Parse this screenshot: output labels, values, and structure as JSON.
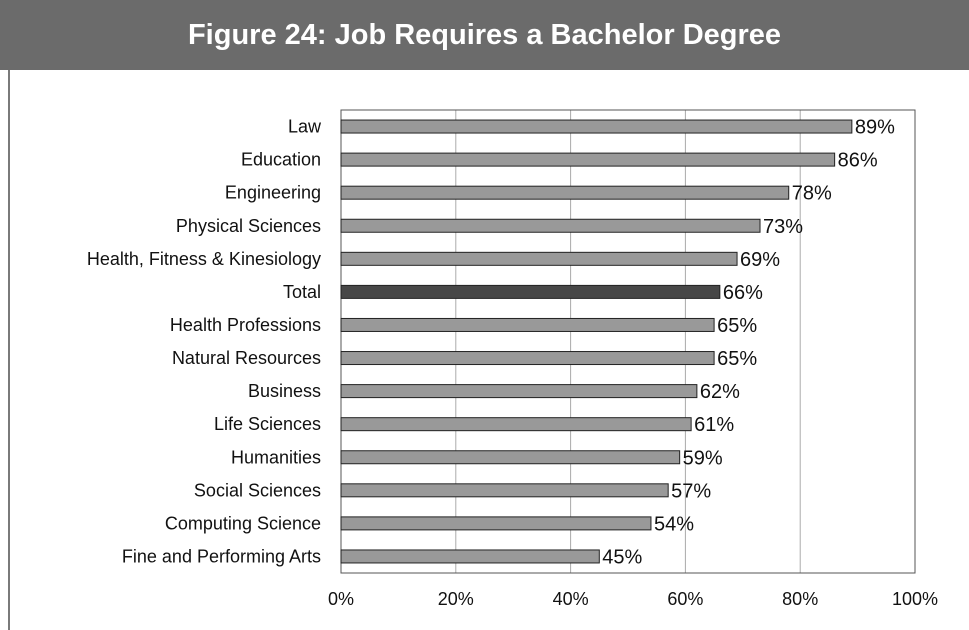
{
  "chart_data": {
    "type": "bar",
    "orientation": "horizontal",
    "title": "Figure 24: Job Requires a Bachelor Degree",
    "categories": [
      "Law",
      "Education",
      "Engineering",
      "Physical Sciences",
      "Health, Fitness & Kinesiology",
      "Total",
      "Health Professions",
      "Natural Resources",
      "Business",
      "Life Sciences",
      "Humanities",
      "Social Sciences",
      "Computing Science",
      "Fine and Performing Arts"
    ],
    "values": [
      89,
      86,
      78,
      73,
      69,
      66,
      65,
      65,
      62,
      61,
      59,
      57,
      54,
      45
    ],
    "value_labels": [
      "89%",
      "86%",
      "78%",
      "73%",
      "69%",
      "66%",
      "65%",
      "65%",
      "62%",
      "61%",
      "59%",
      "57%",
      "54%",
      "45%"
    ],
    "highlight_category": "Total",
    "xlim": [
      0,
      100
    ],
    "xticks": [
      0,
      20,
      40,
      60,
      80,
      100
    ],
    "xtick_labels": [
      "0%",
      "20%",
      "40%",
      "60%",
      "80%",
      "100%"
    ],
    "grid": true,
    "legend": "none",
    "colors": {
      "bar": "#999999",
      "bar_highlight": "#474747",
      "bar_stroke": "#222222",
      "title_band": "#6b6b6b",
      "title_text": "#ffffff",
      "grid": "#aaaaaa"
    }
  }
}
